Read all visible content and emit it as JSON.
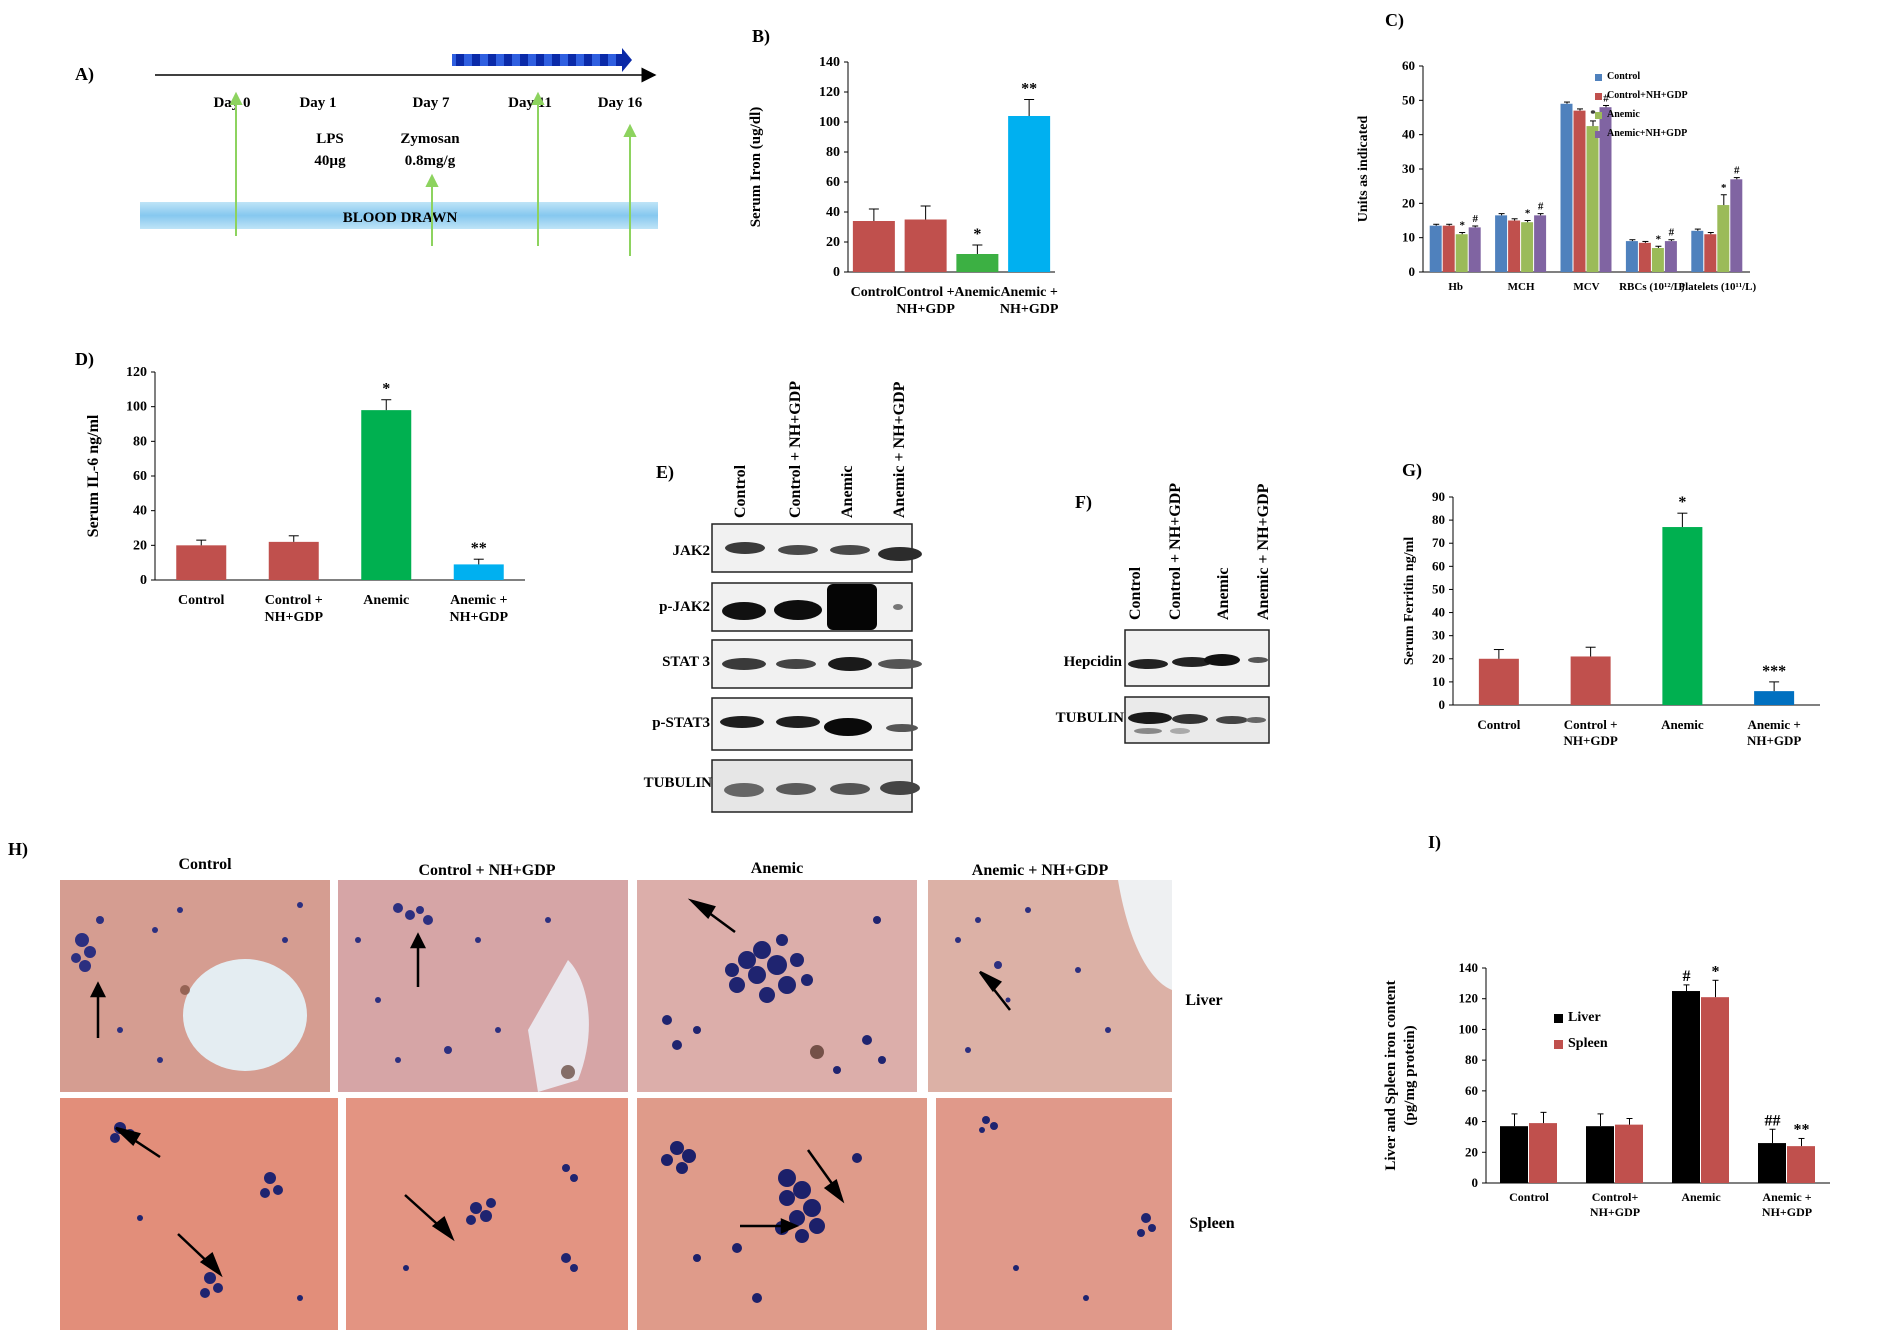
{
  "panels": {
    "A": {
      "letter": "A)",
      "days": [
        "Day 0",
        "Day 1",
        "Day 7",
        "Day 11",
        "Day 16"
      ],
      "lps": [
        "LPS",
        "40µg"
      ],
      "zymosan": [
        "Zymosan",
        "0.8mg/g"
      ],
      "bar_label": "BLOOD DRAWN",
      "colors": {
        "bar": "#8ecdf0",
        "arrow": "#8dd35f",
        "treatment": "#0a2aa8"
      }
    },
    "B": {
      "letter": "B)"
    },
    "C": {
      "letter": "C)"
    },
    "D": {
      "letter": "D)"
    },
    "E": {
      "letter": "E)",
      "lanes": [
        "Control",
        "Control + NH+GDP",
        "Anemic",
        "Anemic + NH+GDP"
      ],
      "rows": [
        "JAK2",
        "p-JAK2",
        "STAT 3",
        "p-STAT3",
        "TUBULIN"
      ]
    },
    "F": {
      "letter": "F)",
      "lanes": [
        "Control",
        "Control + NH+GDP",
        "Anemic",
        "Anemic + NH+GDP"
      ],
      "rows": [
        "Hepcidin",
        "TUBULIN"
      ]
    },
    "G": {
      "letter": "G)"
    },
    "H": {
      "letter": "H)",
      "columns": [
        "Control",
        "Control +  NH+GDP",
        "Anemic",
        "Anemic +  NH+GDP"
      ],
      "rows": [
        "Liver",
        "Spleen"
      ]
    },
    "I": {
      "letter": "I)"
    }
  },
  "chart_data": [
    {
      "id": "B",
      "type": "bar",
      "categories": [
        "Control",
        "Control +|NH+GDP",
        "Anemic",
        "Anemic +|NH+GDP"
      ],
      "values": [
        34,
        35,
        12,
        104
      ],
      "errors": [
        8,
        9,
        6,
        11
      ],
      "colors": [
        "#c0504d",
        "#c0504d",
        "#3cb043",
        "#00b0f0"
      ],
      "annotations": [
        "",
        "",
        "*",
        "**"
      ],
      "ylabel": "Serum Iron (ug/dl)",
      "ylim": [
        0,
        140
      ],
      "yticks": [
        0,
        20,
        40,
        60,
        80,
        100,
        120,
        140
      ]
    },
    {
      "id": "C",
      "type": "bar",
      "categories": [
        "Hb",
        "MCH",
        "MCV",
        "RBCs (10¹²/L)",
        "Platelets (10¹¹/L)"
      ],
      "series": [
        {
          "name": "Control",
          "values": [
            13.5,
            16.5,
            49,
            9,
            12
          ],
          "errors": [
            0.4,
            0.5,
            0.5,
            0.4,
            0.5
          ],
          "color": "#4f81bd"
        },
        {
          "name": "Control+NH+GDP",
          "values": [
            13.5,
            15,
            47,
            8.5,
            11
          ],
          "errors": [
            0.4,
            0.5,
            0.5,
            0.4,
            0.5
          ],
          "color": "#c0504d"
        },
        {
          "name": "Anemic",
          "values": [
            11,
            14.5,
            42.5,
            7,
            19.5
          ],
          "errors": [
            0.5,
            0.5,
            1.5,
            0.5,
            3
          ],
          "color": "#9bbb59"
        },
        {
          "name": "Anemic+NH+GDP",
          "values": [
            13,
            16.5,
            48,
            9,
            27
          ],
          "errors": [
            0.4,
            0.5,
            0.5,
            0.4,
            0.5
          ],
          "color": "#8064a2"
        }
      ],
      "annotations": [
        [
          "",
          "",
          "*",
          "#"
        ],
        [
          "",
          "",
          "*",
          "#"
        ],
        [
          "",
          "",
          "*",
          "#"
        ],
        [
          "",
          "",
          "*",
          "#"
        ],
        [
          "",
          "",
          "*",
          "#"
        ]
      ],
      "ylabel": "Units as indicated",
      "ylim": [
        0,
        60
      ],
      "yticks": [
        0,
        10,
        20,
        30,
        40,
        50,
        60
      ],
      "legend": "top-right"
    },
    {
      "id": "D",
      "type": "bar",
      "categories": [
        "Control",
        "Control +|NH+GDP",
        "Anemic",
        "Anemic +|NH+GDP"
      ],
      "values": [
        20,
        22,
        98,
        9
      ],
      "errors": [
        3,
        3.5,
        6,
        3
      ],
      "colors": [
        "#c0504d",
        "#c0504d",
        "#00b050",
        "#00b0f0"
      ],
      "annotations": [
        "",
        "",
        "*",
        "**"
      ],
      "ylabel": "Serum IL-6 ng/ml",
      "ylim": [
        0,
        120
      ],
      "yticks": [
        0,
        20,
        40,
        60,
        80,
        100,
        120
      ]
    },
    {
      "id": "G",
      "type": "bar",
      "categories": [
        "Control",
        "Control +|NH+GDP",
        "Anemic",
        "Anemic +|NH+GDP"
      ],
      "values": [
        20,
        21,
        77,
        6
      ],
      "errors": [
        4,
        4,
        6,
        4
      ],
      "colors": [
        "#c0504d",
        "#c0504d",
        "#00b050",
        "#0070c0"
      ],
      "annotations": [
        "",
        "",
        "*",
        "***"
      ],
      "ylabel": "Serum  Ferritin ng/ml",
      "ylim": [
        0,
        90
      ],
      "yticks": [
        0,
        10,
        20,
        30,
        40,
        50,
        60,
        70,
        80,
        90
      ]
    },
    {
      "id": "I",
      "type": "bar",
      "categories": [
        "Control",
        "Control+|NH+GDP",
        "Anemic",
        "Anemic +|NH+GDP"
      ],
      "series": [
        {
          "name": "Liver",
          "values": [
            37,
            37,
            125,
            26
          ],
          "errors": [
            8,
            8,
            4,
            9
          ],
          "color": "#000000"
        },
        {
          "name": "Spleen",
          "values": [
            39,
            38,
            121,
            24
          ],
          "errors": [
            7,
            4,
            11,
            5
          ],
          "color": "#c0504d"
        }
      ],
      "annotations": [
        [
          "",
          ""
        ],
        [
          "",
          ""
        ],
        [
          "#",
          "*"
        ],
        [
          "##",
          "**"
        ]
      ],
      "ylabel": "Liver and Spleen  iron content|(pg/mg protein)",
      "ylim": [
        0,
        140
      ],
      "yticks": [
        0,
        20,
        40,
        60,
        80,
        100,
        120,
        140
      ],
      "legend": "top-left"
    }
  ]
}
